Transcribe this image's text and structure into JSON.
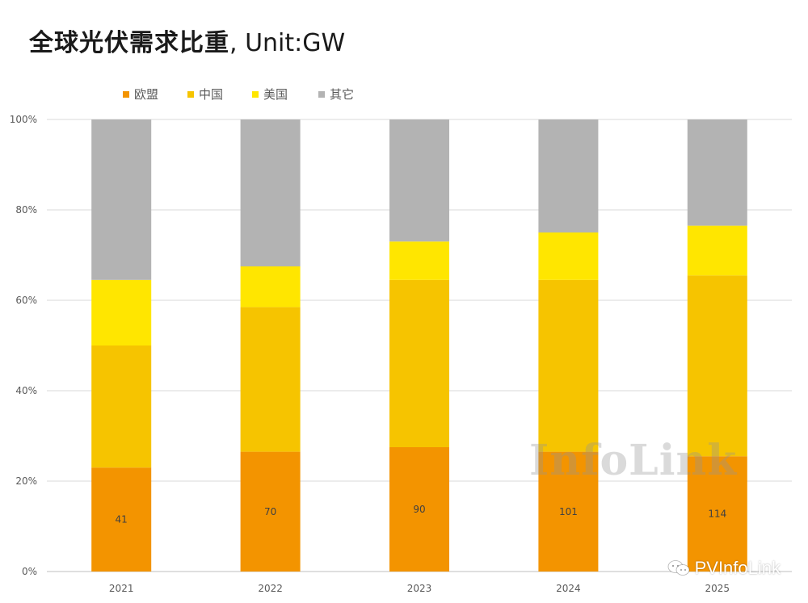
{
  "title": {
    "cn": "全球光伏需求比重",
    "en": ", Unit:GW"
  },
  "watermark": "InfoLink",
  "brand": "PVInfoLink",
  "colors": {
    "eu": "#F39400",
    "china": "#F6C400",
    "us": "#FFE600",
    "other": "#B3B3B3"
  },
  "chart_data": {
    "type": "bar",
    "stacked": true,
    "categories": [
      "2021",
      "2022",
      "2023",
      "2024",
      "2025"
    ],
    "series": [
      {
        "name": "欧盟",
        "values": [
          23,
          26.5,
          27.5,
          26.5,
          25.5
        ],
        "color": "#F39400",
        "labels": [
          "41",
          "70",
          "90",
          "101",
          "114"
        ]
      },
      {
        "name": "中国",
        "values": [
          27,
          32,
          37,
          38,
          40
        ],
        "color": "#F6C400"
      },
      {
        "name": "美国",
        "values": [
          14.5,
          9,
          8.5,
          10.5,
          11
        ],
        "color": "#FFE600"
      },
      {
        "name": "其它",
        "values": [
          35.5,
          32.5,
          27,
          25,
          23.5
        ],
        "color": "#B3B3B3"
      }
    ],
    "ylim": [
      0,
      100
    ],
    "yticks": [
      "0%",
      "20%",
      "40%",
      "60%",
      "80%",
      "100%"
    ],
    "grid": true,
    "legend_position": "top-left"
  }
}
